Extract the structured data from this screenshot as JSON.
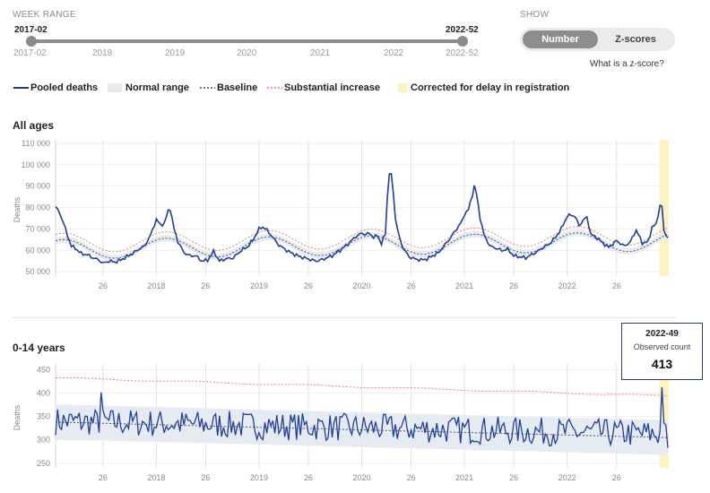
{
  "controls": {
    "week_range_label": "WEEK RANGE",
    "range_start": "2017-02",
    "range_end": "2022-52",
    "slider_ticks": [
      "2017-02",
      "2018",
      "2019",
      "2020",
      "2021",
      "2022",
      "2022-52"
    ],
    "show_label": "SHOW",
    "toggle_number": "Number",
    "toggle_zscores": "Z-scores",
    "selected_mode": "Number",
    "zscore_link": "What is a z-score?"
  },
  "legend": {
    "pooled": "Pooled deaths",
    "normal": "Normal range",
    "baseline": "Baseline",
    "substantial": "Substantial increase",
    "corrected": "Corrected for delay in registration"
  },
  "colors": {
    "pooled": "#1f3f99",
    "normal_range": "#e6ebf2",
    "baseline": "#555555",
    "substantial": "#e8806b",
    "corrected": "#fdf2c4"
  },
  "tooltip": {
    "week": "2022-49",
    "label": "Observed count",
    "value": "413"
  },
  "chart_data": [
    {
      "type": "line",
      "title": "All ages",
      "ylabel": "Deaths",
      "ylim": [
        48000,
        110000
      ],
      "yticks": [
        50000,
        60000,
        70000,
        80000,
        90000,
        100000,
        110000
      ],
      "ytick_labels": [
        "50 000",
        "60 000",
        "70 000",
        "80 000",
        "90 000",
        "100 000",
        "110 000"
      ],
      "xlim": [
        "2017-02",
        "2022-52"
      ],
      "xtick_labels": [
        "26",
        "2018",
        "26",
        "2019",
        "26",
        "2020",
        "26",
        "2021",
        "26",
        "2022",
        "26"
      ],
      "grid": "vertical",
      "corrected_for_delay": [
        "2022-49",
        "2022-52"
      ],
      "pooled_deaths": [
        [
          "2017-02",
          80500
        ],
        [
          "2017-04",
          77500
        ],
        [
          "2017-06",
          73000
        ],
        [
          "2017-08",
          67000
        ],
        [
          "2017-10",
          62000
        ],
        [
          "2017-12",
          61000
        ],
        [
          "2017-15",
          58500
        ],
        [
          "2017-18",
          58000
        ],
        [
          "2017-21",
          56500
        ],
        [
          "2017-24",
          55500
        ],
        [
          "2017-26",
          54000
        ],
        [
          "2017-29",
          55000
        ],
        [
          "2017-32",
          54500
        ],
        [
          "2017-35",
          55500
        ],
        [
          "2017-38",
          57000
        ],
        [
          "2017-41",
          58500
        ],
        [
          "2017-44",
          60500
        ],
        [
          "2017-47",
          62000
        ],
        [
          "2017-50",
          67000
        ],
        [
          "2017-52",
          72000
        ],
        [
          "2018-01",
          74500
        ],
        [
          "2018-03",
          72000
        ],
        [
          "2018-05",
          72500
        ],
        [
          "2018-07",
          78500
        ],
        [
          "2018-08",
          79500
        ],
        [
          "2018-10",
          70000
        ],
        [
          "2018-12",
          64000
        ],
        [
          "2018-15",
          59000
        ],
        [
          "2018-18",
          57500
        ],
        [
          "2018-21",
          57500
        ],
        [
          "2018-24",
          55000
        ],
        [
          "2018-27",
          55500
        ],
        [
          "2018-30",
          59500
        ],
        [
          "2018-33",
          55000
        ],
        [
          "2018-36",
          56000
        ],
        [
          "2018-40",
          56500
        ],
        [
          "2018-44",
          60000
        ],
        [
          "2018-47",
          61500
        ],
        [
          "2018-50",
          65000
        ],
        [
          "2019-01",
          70000
        ],
        [
          "2019-03",
          71000
        ],
        [
          "2019-05",
          69500
        ],
        [
          "2019-08",
          66000
        ],
        [
          "2019-11",
          62500
        ],
        [
          "2019-15",
          60000
        ],
        [
          "2019-18",
          58500
        ],
        [
          "2019-22",
          57000
        ],
        [
          "2019-26",
          56000
        ],
        [
          "2019-30",
          55000
        ],
        [
          "2019-34",
          56000
        ],
        [
          "2019-38",
          57500
        ],
        [
          "2019-42",
          60000
        ],
        [
          "2019-46",
          63000
        ],
        [
          "2019-50",
          66500
        ],
        [
          "2020-01",
          68000
        ],
        [
          "2020-03",
          67500
        ],
        [
          "2020-05",
          68000
        ],
        [
          "2020-07",
          66000
        ],
        [
          "2020-09",
          67000
        ],
        [
          "2020-11",
          63000
        ],
        [
          "2020-13",
          68000
        ],
        [
          "2020-14",
          85000
        ],
        [
          "2020-15",
          96000
        ],
        [
          "2020-16",
          95000
        ],
        [
          "2020-17",
          87000
        ],
        [
          "2020-18",
          75000
        ],
        [
          "2020-20",
          66000
        ],
        [
          "2020-22",
          61000
        ],
        [
          "2020-25",
          57000
        ],
        [
          "2020-28",
          56000
        ],
        [
          "2020-31",
          55500
        ],
        [
          "2020-34",
          56000
        ],
        [
          "2020-37",
          57500
        ],
        [
          "2020-40",
          59000
        ],
        [
          "2020-43",
          62500
        ],
        [
          "2020-46",
          66000
        ],
        [
          "2020-49",
          70000
        ],
        [
          "2020-52",
          74000
        ],
        [
          "2021-01",
          77000
        ],
        [
          "2021-03",
          79000
        ],
        [
          "2021-05",
          86000
        ],
        [
          "2021-06",
          90000
        ],
        [
          "2021-07",
          87000
        ],
        [
          "2021-09",
          75000
        ],
        [
          "2021-11",
          67000
        ],
        [
          "2021-14",
          62000
        ],
        [
          "2021-17",
          61000
        ],
        [
          "2021-20",
          60000
        ],
        [
          "2021-23",
          60500
        ],
        [
          "2021-26",
          57500
        ],
        [
          "2021-29",
          57000
        ],
        [
          "2021-32",
          56500
        ],
        [
          "2021-35",
          58000
        ],
        [
          "2021-38",
          59500
        ],
        [
          "2021-41",
          61500
        ],
        [
          "2021-44",
          63000
        ],
        [
          "2021-47",
          66000
        ],
        [
          "2021-50",
          70000
        ],
        [
          "2022-01",
          76000
        ],
        [
          "2022-03",
          76500
        ],
        [
          "2022-05",
          76000
        ],
        [
          "2022-07",
          71500
        ],
        [
          "2022-09",
          74000
        ],
        [
          "2022-11",
          75500
        ],
        [
          "2022-13",
          67500
        ],
        [
          "2022-16",
          66000
        ],
        [
          "2022-19",
          63500
        ],
        [
          "2022-22",
          61500
        ],
        [
          "2022-26",
          64500
        ],
        [
          "2022-30",
          62000
        ],
        [
          "2022-33",
          64000
        ],
        [
          "2022-36",
          69500
        ],
        [
          "2022-39",
          63500
        ],
        [
          "2022-42",
          64000
        ],
        [
          "2022-44",
          71000
        ],
        [
          "2022-46",
          72000
        ],
        [
          "2022-48",
          81000
        ],
        [
          "2022-49",
          80500
        ],
        [
          "2022-50",
          69000
        ],
        [
          "2022-52",
          66000
        ]
      ]
    },
    {
      "type": "line",
      "title": "0-14 years",
      "ylabel": "Deaths",
      "ylim": [
        240,
        455
      ],
      "yticks": [
        250,
        300,
        350,
        400,
        450
      ],
      "ytick_labels": [
        "250",
        "300",
        "350",
        "400",
        "450"
      ],
      "xlim": [
        "2017-02",
        "2022-52"
      ],
      "xtick_labels": [
        "26",
        "2018",
        "26",
        "2019",
        "26",
        "2020",
        "26",
        "2021",
        "26",
        "2022",
        "26"
      ],
      "grid": "vertical",
      "corrected_for_delay": [
        "2022-49",
        "2022-52"
      ],
      "baseline": [
        [
          "2017-02",
          338
        ],
        [
          "2022-52",
          305
        ]
      ],
      "normal_range_lower": [
        [
          "2017-02",
          301
        ],
        [
          "2022-52",
          268
        ]
      ],
      "normal_range_upper": [
        [
          "2017-02",
          376
        ],
        [
          "2022-52",
          342
        ]
      ],
      "substantial_increase": [
        [
          "2017-02",
          433
        ],
        [
          "2022-52",
          394
        ]
      ],
      "pooled_deaths_mean": [
        [
          "2017-02",
          340
        ],
        [
          "2022-52",
          312
        ]
      ],
      "pooled_deaths_spread": 30,
      "pooled_deaths_peaks": [
        [
          "2017-25",
          402
        ],
        [
          "2022-49",
          413
        ]
      ]
    }
  ]
}
